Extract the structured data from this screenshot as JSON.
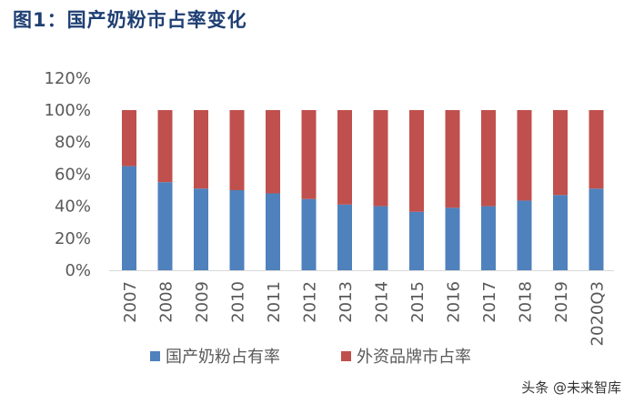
{
  "title": "图1：国产奶粉市占率变化",
  "watermark": "头条 @未来智库",
  "chart_data": {
    "type": "bar",
    "stacked": true,
    "categories": [
      "2007",
      "2008",
      "2009",
      "2010",
      "2011",
      "2012",
      "2013",
      "2014",
      "2015",
      "2016",
      "2017",
      "2018",
      "2019",
      "2020Q3"
    ],
    "series": [
      {
        "name": "国产奶粉占有率",
        "color": "#4f81bd",
        "values": [
          65,
          55,
          51,
          50,
          48,
          44.5,
          41,
          40,
          36.5,
          39,
          40,
          43.5,
          47,
          51
        ]
      },
      {
        "name": "外资品牌市占率",
        "color": "#c0504d",
        "values": [
          35,
          45,
          49,
          50,
          52,
          55.5,
          59,
          60,
          63.5,
          61,
          60,
          56.5,
          53,
          49
        ]
      }
    ],
    "ylim": [
      0,
      120
    ],
    "yticks": [
      "0%",
      "20%",
      "40%",
      "60%",
      "80%",
      "100%",
      "120%"
    ],
    "grid": false,
    "legend": "bottom"
  }
}
